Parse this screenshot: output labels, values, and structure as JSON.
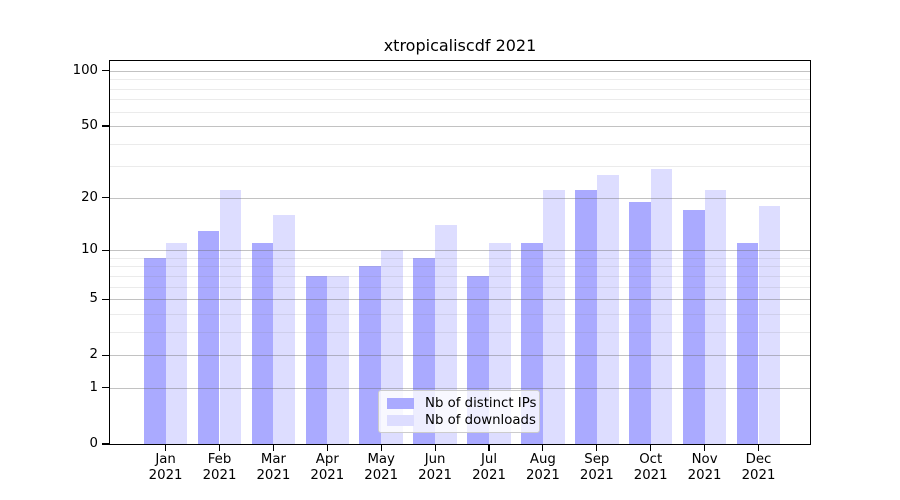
{
  "chart_data": {
    "type": "bar",
    "title": "xtropicaliscdf 2021",
    "categories": [
      "Jan 2021",
      "Feb 2021",
      "Mar 2021",
      "Apr 2021",
      "May 2021",
      "Jun 2021",
      "Jul 2021",
      "Aug 2021",
      "Sep 2021",
      "Oct 2021",
      "Nov 2021",
      "Dec 2021"
    ],
    "series": [
      {
        "name": "Nb of distinct IPs",
        "color": "#AAAAFF",
        "values": [
          9,
          13,
          11,
          7,
          8,
          9,
          7,
          11,
          22,
          19,
          17,
          11
        ]
      },
      {
        "name": "Nb of downloads",
        "color": "#DDDDFF",
        "values": [
          11,
          22,
          16,
          7,
          10,
          14,
          11,
          22,
          27,
          29,
          22,
          18
        ]
      }
    ],
    "xlabel": "",
    "ylabel": "",
    "grid": true,
    "legend_position": "lower-center-inside",
    "y_axis": {
      "scale": "log1p",
      "tick_labels": [
        0,
        1,
        2,
        5,
        10,
        20,
        50,
        100
      ],
      "minor_gridlines": [
        3,
        4,
        6,
        7,
        8,
        9,
        30,
        40,
        60,
        70,
        80,
        90
      ],
      "top_value": 113
    },
    "colors": {
      "axis": "#000000",
      "major_grid": "#c9c9c9",
      "minor_grid": "#ebebeb",
      "background": "#ffffff"
    }
  }
}
